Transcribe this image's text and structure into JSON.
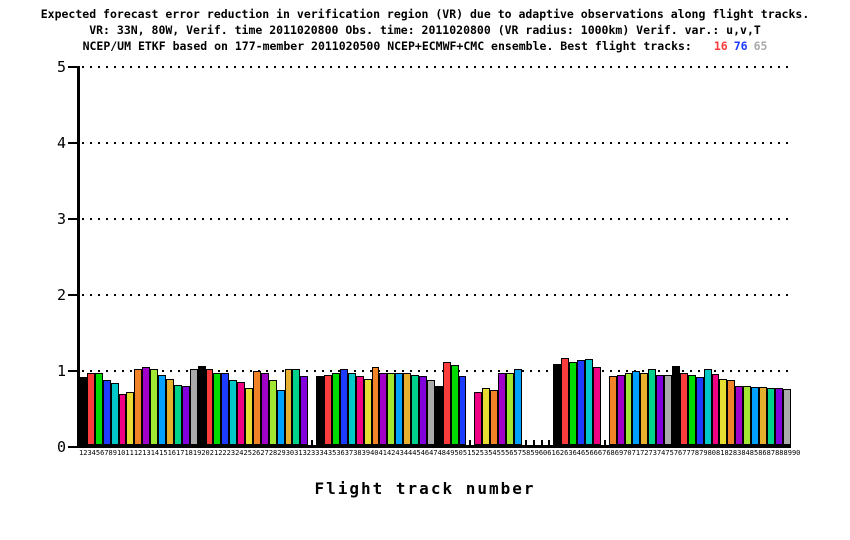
{
  "title": {
    "line1": "Expected forecast error reduction in verification region (VR) due to adaptive observations along flight tracks.",
    "line2": "VR: 33N, 80W, Verif. time 2011020800 Obs. time: 2011020800 (VR radius: 1000km)  Verif. var.: u,v,T",
    "line3_prefix": "NCEP/UM ETKF based on 177-member 2011020500 NCEP+ECMWF+CMC ensemble. Best flight tracks:",
    "best_tracks": [
      {
        "label": "16",
        "color": "#fa3c3c"
      },
      {
        "label": "76",
        "color": "#1e3cff"
      },
      {
        "label": "65",
        "color": "#aaaaaa"
      }
    ]
  },
  "chart_data": {
    "type": "bar",
    "xlabel": "Flight track number",
    "ylabel": "",
    "ylim": [
      0,
      5
    ],
    "yticks": [
      0,
      1,
      2,
      3,
      4,
      5
    ],
    "ytick_labels": [
      "0",
      "1",
      "2",
      "3",
      "4",
      "5"
    ],
    "grid": "dotted horizontal gridlines at y = 1,2,3,4,5 behind bars",
    "legend_position": "none",
    "axis_color": "#000000",
    "background_color": "#ffffff",
    "color_cycle_grads": [
      "#000000",
      "#fa3c3c",
      "#00dc00",
      "#1e3cff",
      "#00c8c8",
      "#f00082",
      "#e6dc32",
      "#f08228",
      "#a000c8",
      "#a0e632",
      "#00a0ff",
      "#e6af2d",
      "#00d28c",
      "#8200dc",
      "#aaaaaa"
    ],
    "categories": [
      1,
      2,
      3,
      4,
      5,
      6,
      7,
      8,
      9,
      10,
      11,
      12,
      13,
      14,
      15,
      16,
      17,
      18,
      19,
      20,
      21,
      22,
      23,
      24,
      25,
      26,
      27,
      28,
      29,
      30,
      31,
      32,
      33,
      34,
      35,
      36,
      37,
      38,
      39,
      40,
      41,
      42,
      43,
      44,
      45,
      46,
      47,
      48,
      49,
      50,
      51,
      52,
      53,
      54,
      55,
      56,
      57,
      58,
      59,
      60,
      61,
      62,
      63,
      64,
      65,
      66,
      67,
      68,
      69,
      70,
      71,
      72,
      73,
      74,
      75,
      76,
      77,
      78,
      79,
      80,
      81,
      82,
      83,
      84,
      85,
      86,
      87,
      88,
      89,
      90
    ],
    "values": [
      0.92,
      0.98,
      0.97,
      0.88,
      0.84,
      0.7,
      0.72,
      1.02,
      1.05,
      1.02,
      0.95,
      0.9,
      0.82,
      0.8,
      1.02,
      1.07,
      1.03,
      0.98,
      0.97,
      0.88,
      0.85,
      0.78,
      1.0,
      0.97,
      0.88,
      0.75,
      1.03,
      1.03,
      0.93,
      null,
      0.93,
      0.95,
      0.97,
      1.02,
      0.98,
      0.93,
      0.9,
      1.05,
      0.97,
      0.97,
      0.98,
      0.97,
      0.95,
      0.93,
      0.88,
      0.8,
      1.12,
      1.08,
      0.93,
      null,
      0.73,
      0.78,
      0.75,
      0.97,
      0.97,
      1.02,
      null,
      null,
      null,
      null,
      1.09,
      1.17,
      1.12,
      1.14,
      1.16,
      1.05,
      null,
      0.94,
      0.95,
      0.97,
      1.0,
      0.98,
      1.02,
      0.95,
      0.95,
      1.07,
      0.97,
      0.95,
      0.92,
      1.03,
      0.96,
      0.9,
      0.88,
      0.8,
      0.8,
      0.79,
      0.79,
      0.78,
      0.77,
      0.76
    ],
    "missing_tracks": [
      30,
      50,
      57,
      58,
      59,
      60,
      67
    ],
    "best_tracks": [
      16,
      76,
      65
    ]
  }
}
